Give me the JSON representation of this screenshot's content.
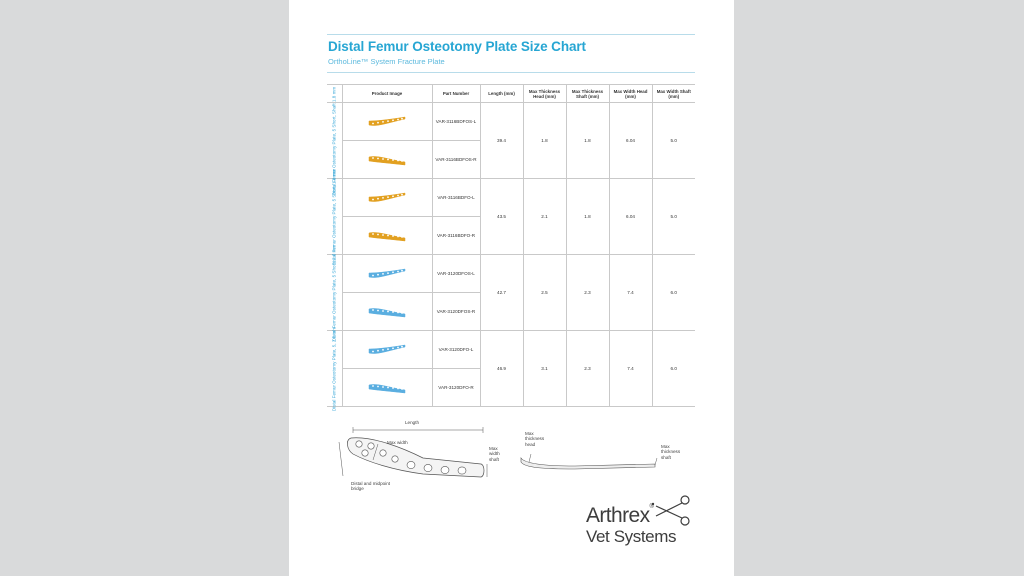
{
  "document": {
    "title": "Distal Femur Osteotomy Plate Size Chart",
    "subtitle": "OrthoLine™ System Fracture Plate"
  },
  "table": {
    "headers": {
      "image": "Product Image",
      "part": "Part Number",
      "length": "Length (mm)",
      "thick_head": "Max Thickness Head (mm)",
      "thick_shaft": "Max Thickness Shaft (mm)",
      "width_head": "Max Width Head (mm)",
      "width_shaft": "Max Width Shaft (mm)"
    },
    "groups": [
      {
        "label": "Distal Femur Osteotomy Plate, 5 Short, Shaft 1.8 mm",
        "color": "#e2a020",
        "parts": [
          "VAR-3116BDFOS-L",
          "VAR-3116BDFOS-R"
        ],
        "length": "39.4",
        "thick_head": "1.8",
        "thick_shaft": "1.8",
        "width_head": "6.04",
        "width_shaft": "5.0"
      },
      {
        "label": "Distal Femur Osteotomy Plate, 5 Short, 1.8 mm",
        "color": "#e2a020",
        "parts": [
          "VAR-3116BDFO-L",
          "VAR-3116BDFO-R"
        ],
        "length": "43.5",
        "thick_head": "2.1",
        "thick_shaft": "1.8",
        "width_head": "6.04",
        "width_shaft": "5.0"
      },
      {
        "label": "Distal Femur Osteotomy Plate, 5 Short, 2.0 mm",
        "color": "#5aaee0",
        "parts": [
          "VAR-3120DFOS-L",
          "VAR-3120DFOS-R"
        ],
        "length": "42.7",
        "thick_head": "2.5",
        "thick_shaft": "2.3",
        "width_head": "7.4",
        "width_shaft": "6.0"
      },
      {
        "label": "Distal Femur Osteotomy Plate, 5, 2.0 mm",
        "color": "#5aaee0",
        "parts": [
          "VAR-3120DFO-L",
          "VAR-3120DFO-R"
        ],
        "length": "46.9",
        "thick_head": "3.1",
        "thick_shaft": "2.3",
        "width_head": "7.4",
        "width_shaft": "6.0"
      }
    ]
  },
  "diagram_left": {
    "length": "Length",
    "max_width": "Max width",
    "max_width_shaft": "Max width shaft",
    "bridge": "Distal and midpoint bridge"
  },
  "diagram_right": {
    "thick_head": "Max thickness head",
    "thick_shaft": "Max thickness shaft"
  },
  "logo": {
    "line1": "Arthrex",
    "line2": "Vet Systems",
    "mark_color": "#3d3d3d"
  }
}
